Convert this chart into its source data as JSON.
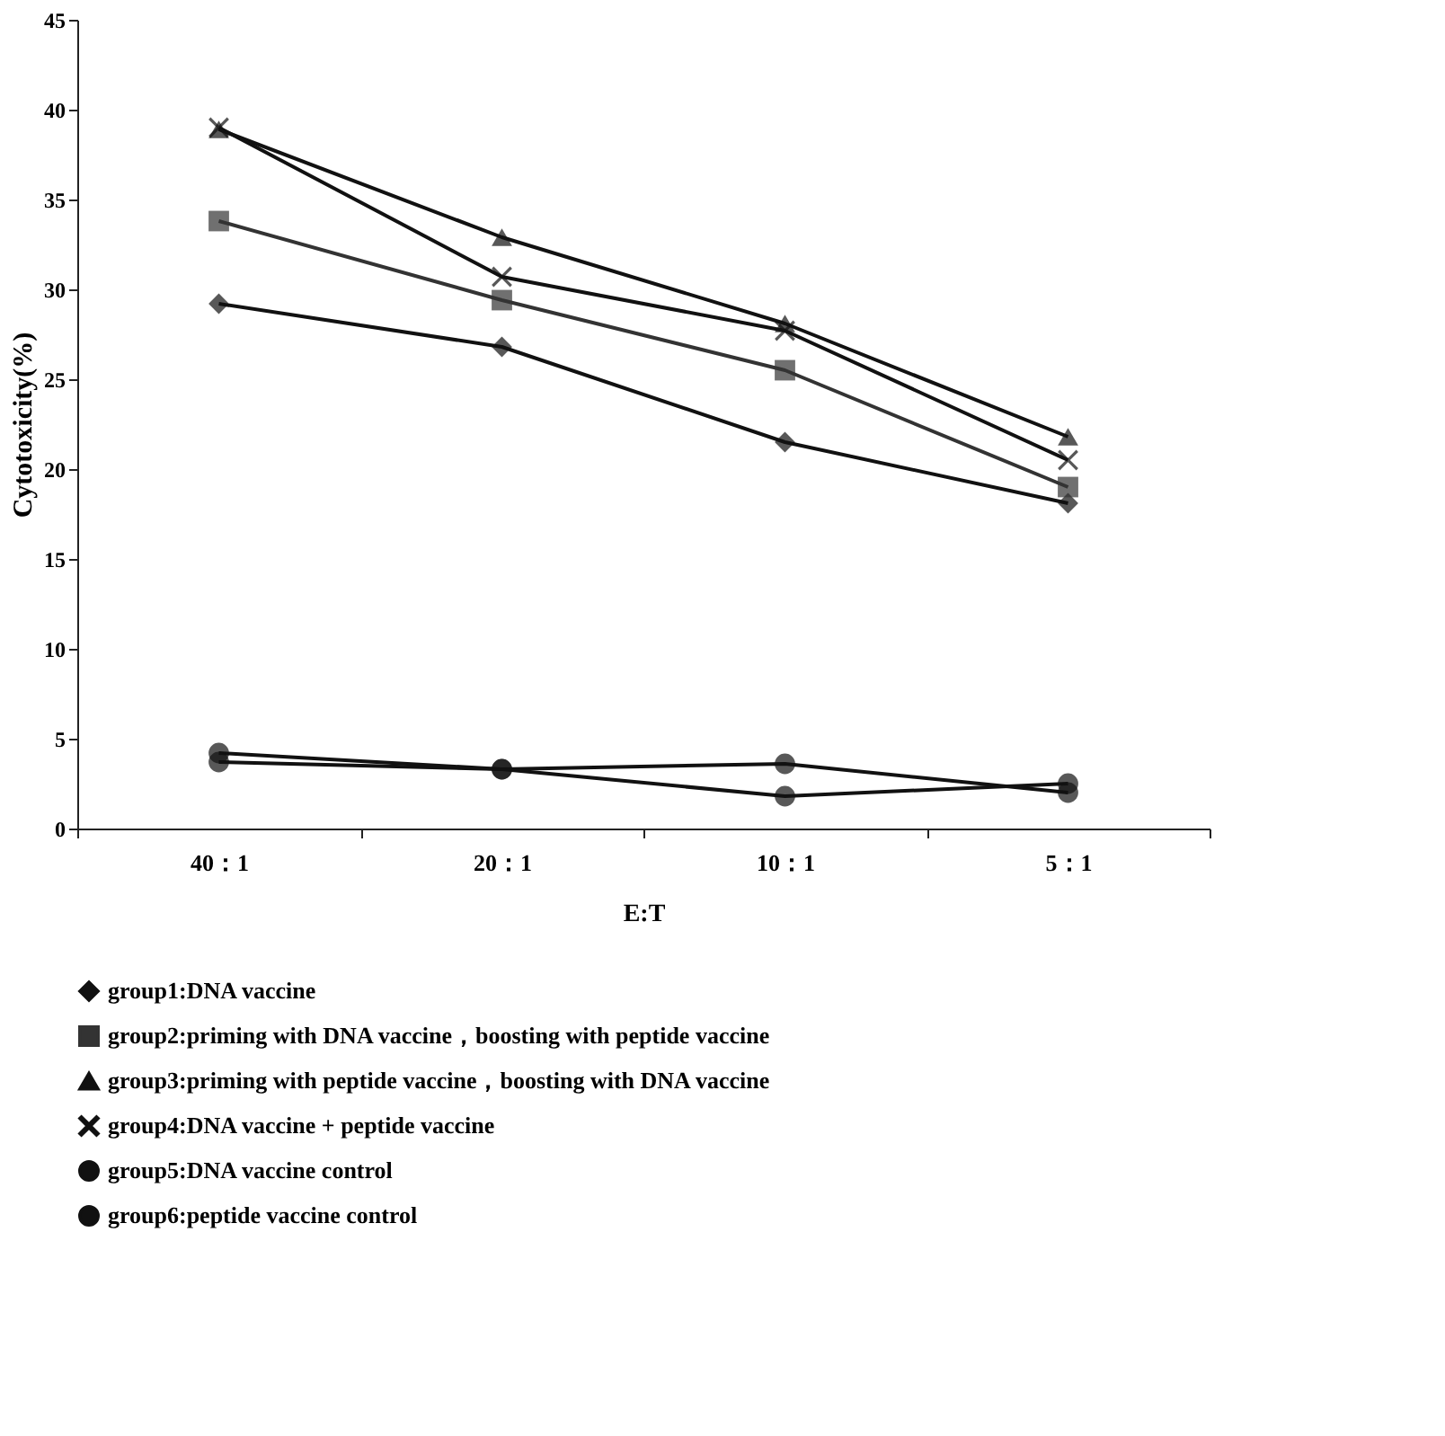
{
  "chart_data": {
    "type": "line",
    "xlabel": "E:T",
    "ylabel": "Cytotoxicity(%)",
    "categories": [
      "40：1",
      "20：1",
      "10：1",
      "5：1"
    ],
    "ylim": [
      0,
      45
    ],
    "yticks": [
      0,
      5,
      10,
      15,
      20,
      25,
      30,
      35,
      40,
      45
    ],
    "grid": false,
    "legend": "bottom",
    "line_style": "solid",
    "series": [
      {
        "name": "group1:DNA vaccine",
        "color": "#111111",
        "marker": "diamond",
        "values": [
          29.2,
          26.8,
          21.5,
          18.1
        ]
      },
      {
        "name": "group2:priming with DNA vaccine，boosting with peptide vaccine",
        "color": "#333333",
        "marker": "square",
        "values": [
          33.8,
          29.4,
          25.5,
          19.0
        ]
      },
      {
        "name": "group3:priming with peptide vaccine，boosting with DNA vaccine",
        "color": "#111111",
        "marker": "triangle",
        "values": [
          38.9,
          32.9,
          28.1,
          21.8
        ]
      },
      {
        "name": "group4:DNA vaccine + peptide vaccine",
        "color": "#111111",
        "marker": "cross",
        "values": [
          39.0,
          30.7,
          27.7,
          20.5
        ]
      },
      {
        "name": "group5:DNA vaccine control",
        "color": "#111111",
        "marker": "circle",
        "values": [
          3.7,
          3.3,
          3.6,
          2.0
        ]
      },
      {
        "name": "group6:peptide vaccine control",
        "color": "#111111",
        "marker": "circle",
        "values": [
          4.2,
          3.3,
          1.8,
          2.5
        ]
      }
    ]
  }
}
